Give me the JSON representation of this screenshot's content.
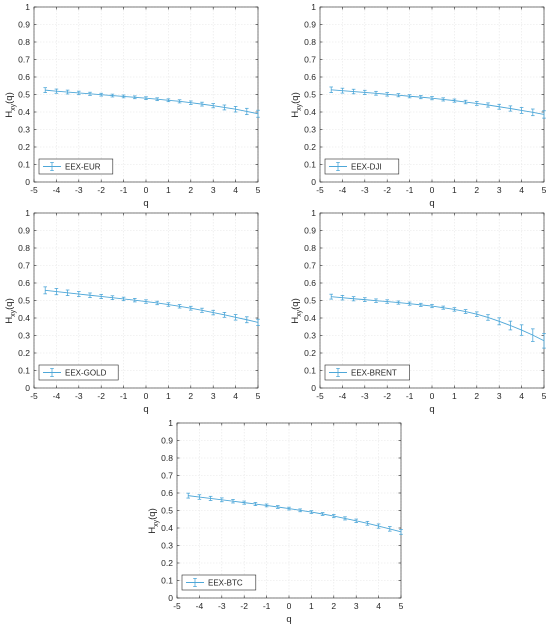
{
  "chart_data": [
    {
      "type": "line",
      "legend": "EEX-EUR",
      "legend_location": "bottom-left",
      "xlabel": "q",
      "ylabel_main": "H",
      "ylabel_sub": "xy",
      "ylabel_tail": "(q)",
      "xlim": [
        -5,
        5
      ],
      "ylim": [
        0,
        1
      ],
      "grid": true,
      "x": [
        -4.5,
        -4,
        -3.5,
        -3,
        -2.5,
        -2,
        -1.5,
        -1,
        -0.5,
        0,
        0.5,
        1,
        1.5,
        2,
        2.5,
        3,
        3.5,
        4,
        4.5,
        5
      ],
      "y": [
        0.525,
        0.519,
        0.514,
        0.509,
        0.504,
        0.499,
        0.494,
        0.489,
        0.484,
        0.479,
        0.473,
        0.467,
        0.461,
        0.453,
        0.445,
        0.436,
        0.426,
        0.416,
        0.403,
        0.39
      ],
      "err": [
        0.014,
        0.012,
        0.011,
        0.01,
        0.009,
        0.008,
        0.008,
        0.008,
        0.008,
        0.008,
        0.008,
        0.008,
        0.009,
        0.01,
        0.011,
        0.012,
        0.014,
        0.016,
        0.018,
        0.02
      ]
    },
    {
      "type": "line",
      "legend": "EEX-DJI",
      "legend_location": "bottom-left",
      "xlabel": "q",
      "ylabel_main": "H",
      "ylabel_sub": "xy",
      "ylabel_tail": "(q)",
      "xlim": [
        -5,
        5
      ],
      "ylim": [
        0,
        1
      ],
      "grid": true,
      "x": [
        -4.5,
        -4,
        -3.5,
        -3,
        -2.5,
        -2,
        -1.5,
        -1,
        -0.5,
        0,
        0.5,
        1,
        1.5,
        2,
        2.5,
        3,
        3.5,
        4,
        4.5,
        5
      ],
      "y": [
        0.527,
        0.522,
        0.517,
        0.512,
        0.507,
        0.501,
        0.496,
        0.49,
        0.485,
        0.479,
        0.472,
        0.465,
        0.457,
        0.449,
        0.44,
        0.43,
        0.42,
        0.409,
        0.398,
        0.386
      ],
      "err": [
        0.016,
        0.014,
        0.013,
        0.012,
        0.011,
        0.01,
        0.009,
        0.009,
        0.009,
        0.009,
        0.009,
        0.009,
        0.01,
        0.011,
        0.012,
        0.014,
        0.015,
        0.017,
        0.019,
        0.021
      ]
    },
    {
      "type": "line",
      "legend": "EEX-GOLD",
      "legend_location": "bottom-left",
      "xlabel": "q",
      "ylabel_main": "H",
      "ylabel_sub": "xy",
      "ylabel_tail": "(q)",
      "xlim": [
        -5,
        5
      ],
      "ylim": [
        0,
        1
      ],
      "grid": true,
      "x": [
        -4.5,
        -4,
        -3.5,
        -3,
        -2.5,
        -2,
        -1.5,
        -1,
        -0.5,
        0,
        0.5,
        1,
        1.5,
        2,
        2.5,
        3,
        3.5,
        4,
        4.5,
        5
      ],
      "y": [
        0.558,
        0.551,
        0.544,
        0.537,
        0.53,
        0.523,
        0.516,
        0.509,
        0.502,
        0.494,
        0.486,
        0.477,
        0.467,
        0.456,
        0.444,
        0.431,
        0.418,
        0.404,
        0.39,
        0.375
      ],
      "err": [
        0.02,
        0.018,
        0.016,
        0.014,
        0.013,
        0.012,
        0.011,
        0.01,
        0.01,
        0.01,
        0.01,
        0.01,
        0.01,
        0.011,
        0.012,
        0.013,
        0.014,
        0.016,
        0.017,
        0.018
      ]
    },
    {
      "type": "line",
      "legend": "EEX-BRENT",
      "legend_location": "bottom-left",
      "xlabel": "q",
      "ylabel_main": "H",
      "ylabel_sub": "xy",
      "ylabel_tail": "(q)",
      "xlim": [
        -5,
        5
      ],
      "ylim": [
        0,
        1
      ],
      "grid": true,
      "x": [
        -4.5,
        -4,
        -3.5,
        -3,
        -2.5,
        -2,
        -1.5,
        -1,
        -0.5,
        0,
        0.5,
        1,
        1.5,
        2,
        2.5,
        3,
        3.5,
        4,
        4.5,
        5
      ],
      "y": [
        0.522,
        0.516,
        0.51,
        0.505,
        0.499,
        0.494,
        0.488,
        0.482,
        0.475,
        0.468,
        0.459,
        0.449,
        0.437,
        0.422,
        0.403,
        0.381,
        0.357,
        0.331,
        0.302,
        0.27
      ],
      "err": [
        0.014,
        0.013,
        0.012,
        0.011,
        0.01,
        0.01,
        0.009,
        0.009,
        0.009,
        0.009,
        0.009,
        0.01,
        0.011,
        0.013,
        0.016,
        0.02,
        0.025,
        0.03,
        0.036,
        0.042
      ]
    },
    {
      "type": "line",
      "legend": "EEX-BTC",
      "legend_location": "bottom-left",
      "xlabel": "q",
      "ylabel_main": "H",
      "ylabel_sub": "xy",
      "ylabel_tail": "(q)",
      "xlim": [
        -5,
        5
      ],
      "ylim": [
        0,
        1
      ],
      "grid": true,
      "x": [
        -4.5,
        -4,
        -3.5,
        -3,
        -2.5,
        -2,
        -1.5,
        -1,
        -0.5,
        0,
        0.5,
        1,
        1.5,
        2,
        2.5,
        3,
        3.5,
        4,
        4.5,
        5
      ],
      "y": [
        0.585,
        0.577,
        0.569,
        0.561,
        0.553,
        0.545,
        0.537,
        0.529,
        0.52,
        0.511,
        0.501,
        0.491,
        0.48,
        0.468,
        0.455,
        0.441,
        0.427,
        0.411,
        0.395,
        0.378
      ],
      "err": [
        0.014,
        0.013,
        0.012,
        0.011,
        0.01,
        0.009,
        0.009,
        0.008,
        0.008,
        0.008,
        0.008,
        0.008,
        0.008,
        0.009,
        0.009,
        0.01,
        0.011,
        0.012,
        0.013,
        0.014
      ]
    }
  ],
  "colors": {
    "series": "#4ea7d8",
    "grid": "#e6e6e6",
    "axis": "#262626",
    "legend_border": "#262626"
  }
}
